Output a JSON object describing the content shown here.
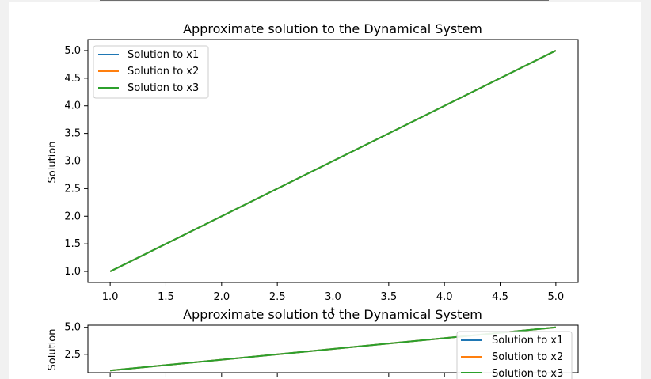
{
  "chart_data": [
    {
      "type": "line",
      "title": "Approximate solution to the Dynamical System",
      "xlabel": "t",
      "ylabel": "Solution",
      "xlim": [
        0.8,
        5.2
      ],
      "ylim": [
        0.8,
        5.2
      ],
      "xticks": [
        "1.0",
        "1.5",
        "2.0",
        "2.5",
        "3.0",
        "3.5",
        "4.0",
        "4.5",
        "5.0"
      ],
      "yticks": [
        "1.0",
        "1.5",
        "2.0",
        "2.5",
        "3.0",
        "3.5",
        "4.0",
        "4.5",
        "5.0"
      ],
      "legend_position": "upper-left",
      "series": [
        {
          "name": "Solution to x1",
          "color": "#1f77b4",
          "x": [
            1.0,
            5.0
          ],
          "y": [
            1.0,
            5.0
          ]
        },
        {
          "name": "Solution to x2",
          "color": "#ff7f0e",
          "x": [
            1.0,
            5.0
          ],
          "y": [
            1.0,
            5.0
          ]
        },
        {
          "name": "Solution to x3",
          "color": "#2ca02c",
          "x": [
            1.0,
            5.0
          ],
          "y": [
            1.0,
            5.0
          ]
        }
      ]
    },
    {
      "type": "line",
      "title": "Approximate solution to the Dynamical System",
      "xlabel": "",
      "ylabel": "Solution",
      "xlim": [
        0.8,
        5.2
      ],
      "ylim": [
        0.8,
        5.2
      ],
      "yticks": [
        "2.5",
        "5.0"
      ],
      "legend_position": "lower-right",
      "series": [
        {
          "name": "Solution to x1",
          "color": "#1f77b4",
          "x": [
            1.0,
            5.0
          ],
          "y": [
            1.0,
            5.0
          ]
        },
        {
          "name": "Solution to x2",
          "color": "#ff7f0e",
          "x": [
            1.0,
            5.0
          ],
          "y": [
            1.0,
            5.0
          ]
        },
        {
          "name": "Solution to x3",
          "color": "#2ca02c",
          "x": [
            1.0,
            5.0
          ],
          "y": [
            1.0,
            5.0
          ]
        }
      ]
    }
  ]
}
